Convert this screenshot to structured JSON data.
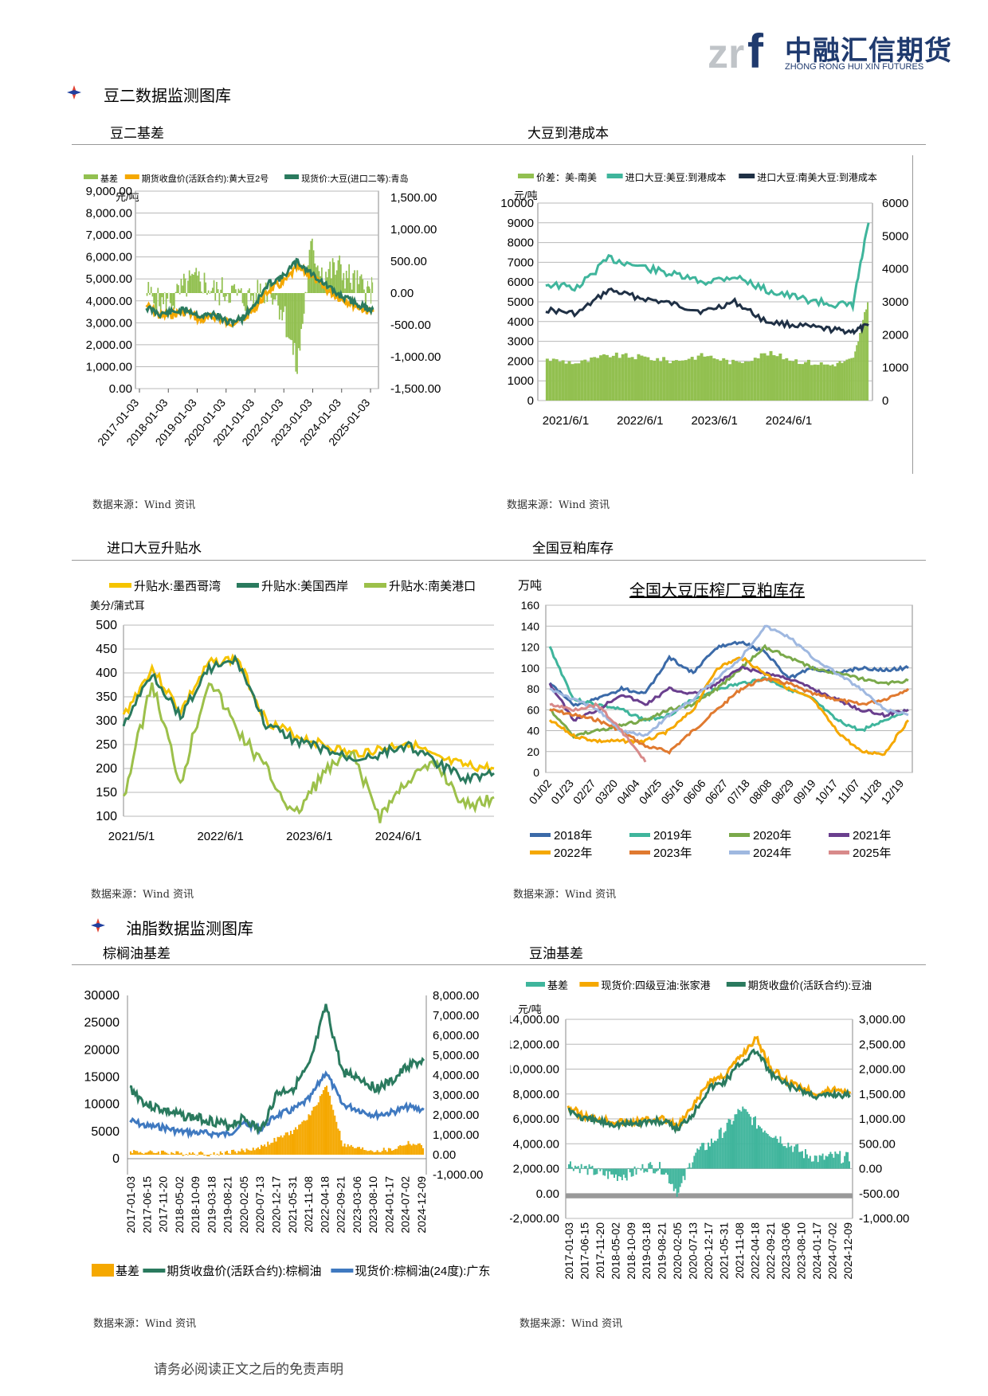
{
  "header": {
    "brand_cn": "中融汇信期货",
    "brand_en": "ZHONG RONG HUI XIN FUTURES"
  },
  "sections": {
    "soymeal": "豆二数据监测图库",
    "oils": "油脂数据监测图库"
  },
  "source": "数据来源：Wind 资讯",
  "footer": "请务必阅读正文之后的免责声明",
  "chart_data": [
    {
      "id": "c1",
      "title": "豆二基差",
      "type": "bar+line",
      "unit_left": "元/吨",
      "legend": [
        "基差",
        "期货收盘价(活跃合约):黄大豆2号",
        "现货价:大豆(进口二等):青岛"
      ],
      "colors": [
        "#92c050",
        "#f5a800",
        "#2a7a5e"
      ],
      "left_ticks": [
        "9,000.00",
        "8,000.00",
        "7,000.00",
        "6,000.00",
        "5,000.00",
        "4,000.00",
        "3,000.00",
        "2,000.00",
        "1,000.00",
        "0.00"
      ],
      "right_ticks": [
        "1,500.00",
        "1,000.00",
        "500.00",
        "0.00",
        "-500.00",
        "-1,000.00",
        "-1,500.00"
      ],
      "x_ticks": [
        "2017-01-03",
        "2018-01-03",
        "2019-01-03",
        "2020-01-03",
        "2021-01-03",
        "2022-01-03",
        "2023-01-03",
        "2024-01-03",
        "2025-01-03"
      ],
      "ylim_left": [
        0,
        9000
      ],
      "ylim_right": [
        -1500,
        1500
      ],
      "x": [
        2017,
        2017.5,
        2018,
        2018.5,
        2019,
        2019.5,
        2020,
        2020.5,
        2021,
        2021.5,
        2022,
        2022.5,
        2023,
        2023.5,
        2024,
        2024.5,
        2025,
        2025.3
      ],
      "series": [
        {
          "name": "基差",
          "values": [
            0,
            -200,
            -100,
            150,
            200,
            0,
            50,
            -100,
            -50,
            100,
            -300,
            -1200,
            700,
            300,
            400,
            200,
            50,
            0
          ]
        },
        {
          "name": "期货收盘价(活跃合约):黄大豆2号",
          "values": [
            3800,
            3300,
            3400,
            3500,
            3100,
            3300,
            3000,
            3100,
            3700,
            4500,
            4800,
            5500,
            5200,
            4600,
            4200,
            3900,
            3600,
            3500
          ]
        },
        {
          "name": "现货价:大豆(进口二等):青岛",
          "values": [
            3700,
            3400,
            3500,
            3600,
            3300,
            3400,
            3000,
            3200,
            3900,
            4800,
            5100,
            5800,
            5300,
            4800,
            4300,
            4000,
            3700,
            3600
          ]
        }
      ]
    },
    {
      "id": "c2",
      "title": "大豆到港成本",
      "type": "bar+line",
      "unit_left": "元/吨",
      "legend": [
        "价差：美-南美",
        "进口大豆:美豆:到港成本",
        "进口大豆:南美大豆:到港成本"
      ],
      "colors": [
        "#92c050",
        "#3fb59c",
        "#1f3045"
      ],
      "left_ticks": [
        "10000",
        "9000",
        "8000",
        "7000",
        "6000",
        "5000",
        "4000",
        "3000",
        "2000",
        "1000",
        "0"
      ],
      "right_ticks": [
        "6000",
        "5000",
        "4000",
        "3000",
        "2000",
        "1000",
        "0"
      ],
      "x_ticks": [
        "2021/6/1",
        "2022/6/1",
        "2023/6/1",
        "2024/6/1"
      ],
      "ylim_left": [
        0,
        10000
      ],
      "ylim_right": [
        0,
        6000
      ],
      "x": [
        2021.4,
        2021.8,
        2022.2,
        2022.6,
        2023.0,
        2023.4,
        2023.8,
        2024.2,
        2024.6,
        2025.0,
        2025.3,
        2025.5
      ],
      "series": [
        {
          "name": "价差：美-南美",
          "values": [
            2100,
            1900,
            2300,
            2200,
            2000,
            2300,
            1900,
            2400,
            2000,
            1800,
            2100,
            5300
          ]
        },
        {
          "name": "进口大豆:美豆:到港成本",
          "values": [
            5900,
            5700,
            7200,
            6800,
            6400,
            6000,
            6300,
            5600,
            5200,
            4900,
            4800,
            9000
          ]
        },
        {
          "name": "进口大豆:南美大豆:到港成本",
          "values": [
            4600,
            4400,
            5600,
            5200,
            4900,
            4500,
            5000,
            4000,
            3800,
            3600,
            3500,
            3800
          ]
        }
      ]
    },
    {
      "id": "c3",
      "title": "进口大豆升贴水",
      "type": "line",
      "unit_left": "美分/蒲式耳",
      "legend": [
        "升贴水:墨西哥湾",
        "升贴水:美国西岸",
        "升贴水:南美港口"
      ],
      "colors": [
        "#f5c400",
        "#2a7a5e",
        "#9cc04a"
      ],
      "left_ticks": [
        "500",
        "450",
        "400",
        "350",
        "300",
        "250",
        "200",
        "150",
        "100"
      ],
      "x_ticks": [
        "2021/5/1",
        "2022/6/1",
        "2023/6/1",
        "2024/6/1"
      ],
      "ylim": [
        100,
        500
      ],
      "x": [
        2021.3,
        2021.6,
        2021.9,
        2022.2,
        2022.5,
        2022.8,
        2023.1,
        2023.4,
        2023.7,
        2024.0,
        2024.3,
        2024.6,
        2024.9,
        2025.2
      ],
      "series": [
        {
          "name": "升贴水:墨西哥湾",
          "values": [
            310,
            410,
            320,
            420,
            430,
            300,
            270,
            250,
            230,
            240,
            255,
            220,
            205,
            200
          ]
        },
        {
          "name": "升贴水:美国西岸",
          "values": [
            290,
            400,
            310,
            410,
            425,
            290,
            260,
            240,
            220,
            230,
            250,
            210,
            180,
            190
          ]
        },
        {
          "name": "升贴水:南美港口",
          "values": [
            140,
            380,
            170,
            390,
            280,
            200,
            100,
            190,
            230,
            100,
            180,
            210,
            120,
            140
          ]
        }
      ]
    },
    {
      "id": "c4",
      "title": "全国豆粕库存",
      "chart_title": "全国大豆压榨厂豆粕库存",
      "type": "line",
      "unit_left": "万吨",
      "left_ticks": [
        "160",
        "140",
        "120",
        "100",
        "80",
        "60",
        "40",
        "20",
        "0"
      ],
      "x_ticks": [
        "01/02",
        "01/23",
        "02/27",
        "03/20",
        "04/04",
        "04/25",
        "05/16",
        "06/06",
        "06/27",
        "07/18",
        "08/08",
        "08/29",
        "09/19",
        "10/17",
        "11/07",
        "11/28",
        "12/19"
      ],
      "ylim": [
        0,
        160
      ],
      "series": [
        {
          "name": "2018年",
          "color": "#3b6aa8",
          "values": [
            85,
            65,
            70,
            80,
            75,
            110,
            95,
            120,
            125,
            115,
            90,
            100,
            95,
            100,
            98,
            100
          ]
        },
        {
          "name": "2019年",
          "color": "#3fb59c",
          "values": [
            120,
            70,
            65,
            60,
            50,
            55,
            70,
            80,
            85,
            90,
            80,
            70,
            50,
            40,
            50,
            60
          ]
        },
        {
          "name": "2020年",
          "color": "#7aa94a",
          "values": [
            60,
            35,
            40,
            45,
            50,
            60,
            65,
            80,
            100,
            120,
            110,
            100,
            95,
            90,
            85,
            88
          ]
        },
        {
          "name": "2021年",
          "color": "#6a3f8e",
          "values": [
            85,
            50,
            60,
            75,
            65,
            80,
            75,
            85,
            100,
            95,
            90,
            80,
            70,
            60,
            55,
            60
          ]
        },
        {
          "name": "2022年",
          "color": "#f5a800",
          "values": [
            50,
            35,
            30,
            30,
            30,
            40,
            60,
            100,
            110,
            95,
            80,
            70,
            40,
            20,
            18,
            50
          ]
        },
        {
          "name": "2023年",
          "color": "#e07a30",
          "values": [
            60,
            55,
            50,
            40,
            25,
            20,
            40,
            60,
            80,
            90,
            85,
            75,
            70,
            65,
            70,
            80
          ]
        },
        {
          "name": "2024年",
          "color": "#9fb8e0",
          "values": [
            80,
            70,
            60,
            40,
            35,
            55,
            70,
            90,
            110,
            140,
            130,
            110,
            95,
            80,
            60,
            55
          ]
        },
        {
          "name": "2025年",
          "color": "#d88a8a",
          "values": [
            65,
            60,
            65,
            40,
            10
          ]
        }
      ]
    },
    {
      "id": "c5",
      "title": "棕榈油基差",
      "type": "bar+line",
      "legend": [
        "基差",
        "期货收盘价(活跃合约):棕榈油",
        "现货价:棕榈油(24度):广东"
      ],
      "colors": [
        "#f5a800",
        "#2a7a5e",
        "#3f79c0"
      ],
      "left_ticks": [
        "30000",
        "25000",
        "20000",
        "15000",
        "10000",
        "5000",
        "0"
      ],
      "right_ticks": [
        "8,000.00",
        "7,000.00",
        "6,000.00",
        "5,000.00",
        "4,000.00",
        "3,000.00",
        "2,000.00",
        "1,000.00",
        "0.00",
        "-1,000.00"
      ],
      "x_ticks": [
        "2017-01-03",
        "2017-06-15",
        "2017-11-20",
        "2018-05-02",
        "2018-10-09",
        "2019-03-18",
        "2019-08-21",
        "2020-02-05",
        "2020-07-13",
        "2020-12-17",
        "2021-05-31",
        "2021-11-08",
        "2022-04-18",
        "2022-09-21",
        "2023-03-06",
        "2023-08-10",
        "2024-01-17",
        "2024-07-02",
        "2024-12-09"
      ],
      "ylim_left": [
        0,
        30000
      ],
      "ylim_right": [
        -1000,
        8000
      ],
      "series": [
        {
          "name": "基差",
          "values": [
            200,
            100,
            150,
            50,
            100,
            0,
            150,
            200,
            400,
            800,
            1200,
            2000,
            3500,
            500,
            300,
            200,
            250,
            600,
            400
          ]
        },
        {
          "name": "期货收盘价(活跃合约):棕榈油",
          "values": [
            13000,
            10000,
            9000,
            8000,
            7500,
            7000,
            6000,
            7500,
            5000,
            12000,
            13000,
            17000,
            28000,
            16000,
            15000,
            13000,
            14000,
            17000,
            18000
          ]
        },
        {
          "name": "现货价:棕榈油(24度):广东",
          "values": [
            7000,
            6000,
            5800,
            5000,
            4800,
            4600,
            4500,
            6500,
            5500,
            8000,
            9000,
            11000,
            16000,
            10000,
            9000,
            8000,
            8500,
            9500,
            9000
          ]
        }
      ]
    },
    {
      "id": "c6",
      "title": "豆油基差",
      "type": "bar+line",
      "unit_left": "元/吨",
      "legend": [
        "基差",
        "现货价:四级豆油:张家港",
        "期货收盘价(活跃合约):豆油"
      ],
      "colors": [
        "#3fb59c",
        "#f5a800",
        "#2a7a5e"
      ],
      "left_ticks": [
        "14,000.00",
        "12,000.00",
        "10,000.00",
        "8,000.00",
        "6,000.00",
        "4,000.00",
        "2,000.00",
        "0.00",
        "-2,000.00"
      ],
      "right_ticks": [
        "3,000.00",
        "2,500.00",
        "2,000.00",
        "1,500.00",
        "1,000.00",
        "500.00",
        "0.00",
        "-500.00",
        "-1,000.00"
      ],
      "x_ticks": [
        "2017-01-03",
        "2017-06-15",
        "2017-11-20",
        "2018-05-02",
        "2018-10-09",
        "2019-03-18",
        "2019-08-21",
        "2020-02-05",
        "2020-07-13",
        "2020-12-17",
        "2021-05-31",
        "2021-11-08",
        "2022-04-18",
        "2022-09-21",
        "2023-03-06",
        "2023-08-10",
        "2024-01-17",
        "2024-07-02",
        "2024-12-09"
      ],
      "ylim_left": [
        -2000,
        14000
      ],
      "ylim_right": [
        -1000,
        3000
      ],
      "series": [
        {
          "name": "基差",
          "values": [
            100,
            0,
            -100,
            -150,
            -100,
            50,
            0,
            -500,
            300,
            500,
            800,
            1200,
            900,
            700,
            500,
            300,
            200,
            250,
            200
          ]
        },
        {
          "name": "现货价:四级豆油:张家港",
          "values": [
            7000,
            6200,
            6000,
            5800,
            5700,
            5900,
            6000,
            5400,
            7000,
            9000,
            9500,
            11000,
            12500,
            10000,
            9000,
            8500,
            8000,
            8400,
            8200
          ]
        },
        {
          "name": "期货收盘价(活跃合约):豆油",
          "values": [
            6800,
            6000,
            5800,
            5600,
            5600,
            5800,
            5800,
            5200,
            6500,
            8500,
            9000,
            10500,
            11500,
            9500,
            8700,
            8200,
            7800,
            8000,
            7900
          ]
        }
      ]
    }
  ]
}
